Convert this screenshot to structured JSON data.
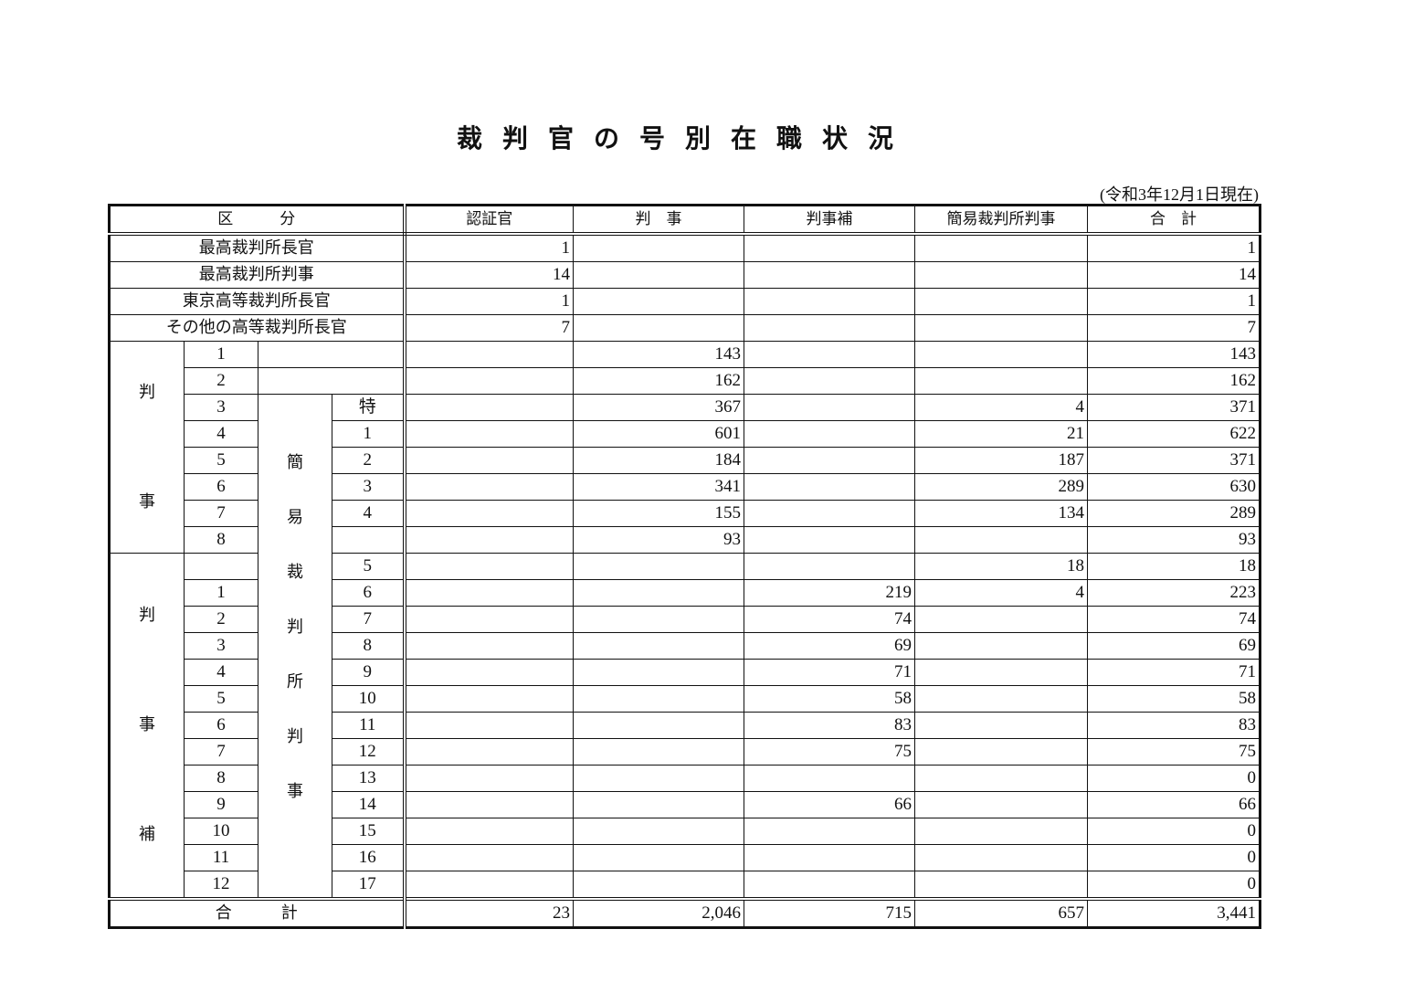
{
  "title": "裁判官の号別在職状況",
  "as_of": "(令和3年12月1日現在)",
  "headers": {
    "category": "区　　　分",
    "cols": [
      "認証官",
      "判　事",
      "判事補",
      "簡易裁判所判事",
      "合　計"
    ]
  },
  "top_rows": [
    {
      "label": "最高裁判所長官",
      "values": [
        "1",
        "",
        "",
        "",
        "1"
      ]
    },
    {
      "label": "最高裁判所判事",
      "values": [
        "14",
        "",
        "",
        "",
        "14"
      ]
    },
    {
      "label": "東京高等裁判所長官",
      "values": [
        "1",
        "",
        "",
        "",
        "1"
      ]
    },
    {
      "label": "その他の高等裁判所長官",
      "values": [
        "7",
        "",
        "",
        "",
        "7"
      ]
    }
  ],
  "judge_group": {
    "label_chars": [
      "判",
      "事"
    ]
  },
  "assistant_group": {
    "label_chars": [
      "判",
      "事",
      "補"
    ]
  },
  "summary_group": {
    "label_chars": [
      "簡",
      "易",
      "裁",
      "判",
      "所",
      "判",
      "事"
    ]
  },
  "judge_rows": [
    {
      "grade": "1",
      "summary_grade": "",
      "values": [
        "",
        "143",
        "",
        "",
        "143"
      ]
    },
    {
      "grade": "2",
      "summary_grade": "",
      "values": [
        "",
        "162",
        "",
        "",
        "162"
      ]
    },
    {
      "grade": "3",
      "summary_grade": "特",
      "values": [
        "",
        "367",
        "",
        "4",
        "371"
      ]
    },
    {
      "grade": "4",
      "summary_grade": "1",
      "values": [
        "",
        "601",
        "",
        "21",
        "622"
      ]
    },
    {
      "grade": "5",
      "summary_grade": "2",
      "values": [
        "",
        "184",
        "",
        "187",
        "371"
      ]
    },
    {
      "grade": "6",
      "summary_grade": "3",
      "values": [
        "",
        "341",
        "",
        "289",
        "630"
      ]
    },
    {
      "grade": "7",
      "summary_grade": "4",
      "values": [
        "",
        "155",
        "",
        "134",
        "289"
      ]
    },
    {
      "grade": "8",
      "summary_grade": "",
      "values": [
        "",
        "93",
        "",
        "",
        "93"
      ]
    }
  ],
  "assistant_rows": [
    {
      "grade": "",
      "summary_grade": "5",
      "values": [
        "",
        "",
        "",
        "18",
        "18"
      ]
    },
    {
      "grade": "1",
      "summary_grade": "6",
      "values": [
        "",
        "",
        "219",
        "4",
        "223"
      ]
    },
    {
      "grade": "2",
      "summary_grade": "7",
      "values": [
        "",
        "",
        "74",
        "",
        "74"
      ]
    },
    {
      "grade": "3",
      "summary_grade": "8",
      "values": [
        "",
        "",
        "69",
        "",
        "69"
      ]
    },
    {
      "grade": "4",
      "summary_grade": "9",
      "values": [
        "",
        "",
        "71",
        "",
        "71"
      ]
    },
    {
      "grade": "5",
      "summary_grade": "10",
      "values": [
        "",
        "",
        "58",
        "",
        "58"
      ]
    },
    {
      "grade": "6",
      "summary_grade": "11",
      "values": [
        "",
        "",
        "83",
        "",
        "83"
      ]
    },
    {
      "grade": "7",
      "summary_grade": "12",
      "values": [
        "",
        "",
        "75",
        "",
        "75"
      ]
    },
    {
      "grade": "8",
      "summary_grade": "13",
      "values": [
        "",
        "",
        "",
        "",
        "0"
      ]
    },
    {
      "grade": "9",
      "summary_grade": "14",
      "values": [
        "",
        "",
        "66",
        "",
        "66"
      ]
    },
    {
      "grade": "10",
      "summary_grade": "15",
      "values": [
        "",
        "",
        "",
        "",
        "0"
      ]
    },
    {
      "grade": "11",
      "summary_grade": "16",
      "values": [
        "",
        "",
        "",
        "",
        "0"
      ]
    },
    {
      "grade": "12",
      "summary_grade": "17",
      "values": [
        "",
        "",
        "",
        "",
        "0"
      ]
    }
  ],
  "total_row": {
    "label": "合　　　計",
    "values": [
      "23",
      "2,046",
      "715",
      "657",
      "3,441"
    ]
  }
}
